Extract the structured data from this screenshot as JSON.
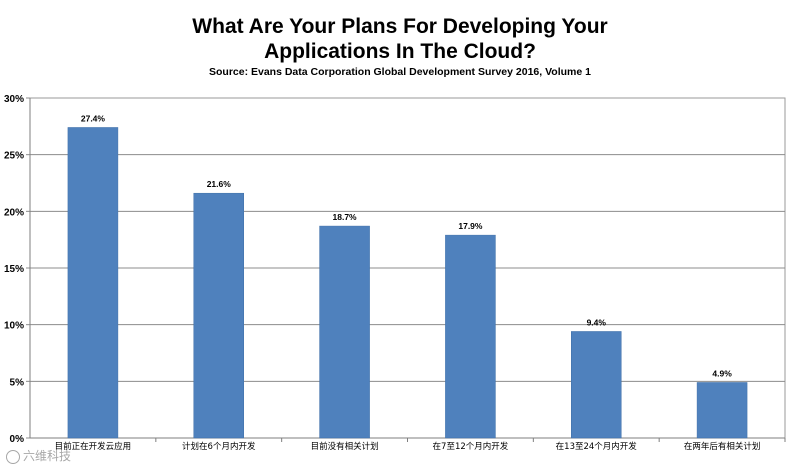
{
  "chart_data": {
    "type": "bar",
    "title_line1": "What Are Your Plans For Developing Your",
    "title_line2": "Applications In The Cloud?",
    "subtitle": "Source: Evans Data Corporation Global Development Survey 2016, Volume 1",
    "categories": [
      "目前正在开发云应用",
      "计划在6个月内开发",
      "目前没有相关计划",
      "在7至12个月内开发",
      "在13至24个月内开发",
      "在两年后有相关计划"
    ],
    "values": [
      27.4,
      21.6,
      18.7,
      17.9,
      9.4,
      4.9
    ],
    "value_labels": [
      "27.4%",
      "21.6%",
      "18.7%",
      "17.9%",
      "9.4%",
      "4.9%"
    ],
    "ylim": [
      0,
      30
    ],
    "yticks": [
      0,
      5,
      10,
      15,
      20,
      25,
      30
    ],
    "ytick_labels": [
      "0%",
      "5%",
      "10%",
      "15%",
      "20%",
      "25%",
      "30%"
    ],
    "grid": true,
    "xlabel": "",
    "ylabel": "",
    "bar_color": "#4f81bd"
  },
  "watermark": "六维科技"
}
